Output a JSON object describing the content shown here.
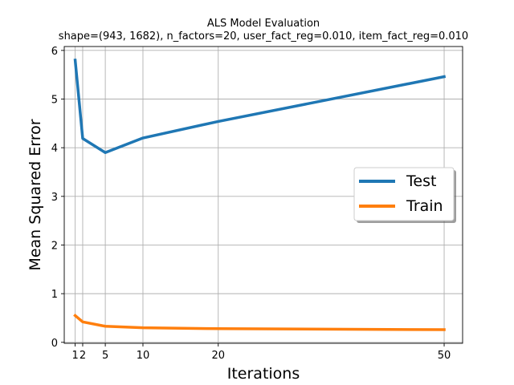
{
  "chart_data": {
    "type": "line",
    "title": "ALS Model Evaluation",
    "subtitle": "shape=(943, 1682), n_factors=20, user_fact_reg=0.010, item_fact_reg=0.010",
    "xlabel": "Iterations",
    "ylabel": "Mean Squared Error",
    "x": [
      1,
      2,
      5,
      10,
      20,
      50
    ],
    "x_ticks": [
      1,
      2,
      5,
      10,
      20,
      50
    ],
    "x_tick_labels": [
      "1",
      "2",
      "5",
      "10",
      "20",
      "50"
    ],
    "y_ticks": [
      0,
      1,
      2,
      3,
      4,
      5,
      6
    ],
    "y_tick_labels": [
      "0",
      "1",
      "2",
      "3",
      "4",
      "5",
      "6"
    ],
    "xlim": [
      -0.45,
      52.45
    ],
    "ylim": [
      -0.02,
      6.08
    ],
    "grid": true,
    "legend_position": "center-right",
    "series": [
      {
        "name": "Test",
        "color": "#1f77b4",
        "values": [
          5.8,
          4.19,
          3.9,
          4.2,
          4.54,
          5.46
        ]
      },
      {
        "name": "Train",
        "color": "#ff7f0e",
        "values": [
          0.55,
          0.42,
          0.33,
          0.3,
          0.28,
          0.26
        ]
      }
    ]
  }
}
